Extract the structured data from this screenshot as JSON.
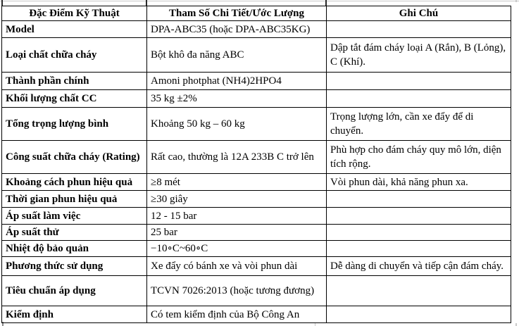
{
  "table": {
    "headers": [
      "Đặc Điểm Kỹ Thuật",
      "Tham Số Chi Tiết/Ước Lượng",
      "Ghi Chú"
    ],
    "rows": [
      {
        "label": "Model",
        "value": "DPA-ABC35 (hoặc DPA-ABC35KG)",
        "note": ""
      },
      {
        "label": "Loại chất chữa cháy",
        "value": "Bột khô đa năng ABC",
        "note": "Dập tắt đám cháy loại A (Rắn), B (Lỏng), C (Khí)."
      },
      {
        "label": "Thành phần chính",
        "value": "Amoni photphat (NH4)2HPO4",
        "note": ""
      },
      {
        "label": "Khối lượng chất CC",
        "value": "35 kg ±2%",
        "note": ""
      },
      {
        "label": "Tổng trọng lượng bình",
        "value": "Khoảng 50 kg – 60 kg",
        "note": "Trọng lượng lớn, cần xe đẩy để di chuyển."
      },
      {
        "label": "Công suất chữa cháy (Rating)",
        "value": "Rất cao, thường là 12A 233B C trở lên",
        "note": "Phù hợp cho đám cháy quy mô lớn, diện tích rộng."
      },
      {
        "label": "Khoảng cách phun hiệu quả",
        "value": "≥8 mét",
        "note": "Vòi phun dài, khả năng phun xa."
      },
      {
        "label": "Thời gian phun hiệu quả",
        "value": "≥30 giây",
        "note": ""
      },
      {
        "label": "Áp suất làm việc",
        "value": "12 - 15 bar",
        "note": ""
      },
      {
        "label": "Áp suất thử",
        "value": "25 bar",
        "note": ""
      },
      {
        "label": "Nhiệt độ bảo quản",
        "value": "−10∘C~60∘C",
        "note": ""
      },
      {
        "label": "Phương thức sử dụng",
        "value": "Xe đẩy có bánh xe và vòi phun dài",
        "note": "Dễ dàng di chuyển và tiếp cận đám cháy."
      },
      {
        "label": "Tiêu chuẩn áp dụng",
        "value": "TCVN 7026:2013 (hoặc tương đương)",
        "note": ""
      },
      {
        "label": "Kiểm định",
        "value": "Có tem kiểm định của Bộ Công An",
        "note": ""
      }
    ]
  },
  "colors": {
    "border": "#000000",
    "text": "#000000",
    "background": "#ffffff",
    "artifact_gray": "#c9c9c9"
  }
}
